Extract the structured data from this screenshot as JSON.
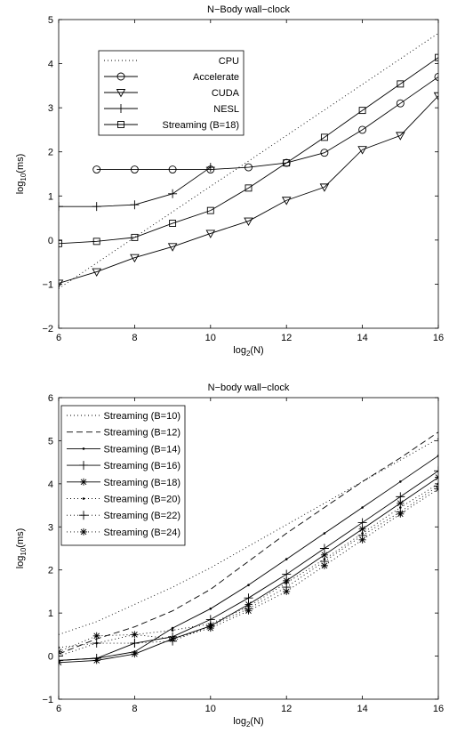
{
  "chart_data": [
    {
      "type": "line",
      "title": "N−Body wall−clock",
      "xlabel": "log",
      "xlabel_sub": "2",
      "xlabel_tail": "(N)",
      "ylabel": "log",
      "ylabel_sub": "10",
      "ylabel_tail": "(ms)",
      "xlim": [
        6,
        16
      ],
      "ylim": [
        -2,
        5
      ],
      "xticks": [
        6,
        8,
        10,
        12,
        14,
        16
      ],
      "yticks": [
        -2,
        -1,
        0,
        1,
        2,
        3,
        4,
        5
      ],
      "legend_position": "top-left",
      "series": [
        {
          "name": "CPU",
          "style": "dotted",
          "marker": "none",
          "x": [
            6,
            7,
            8,
            9,
            10,
            11,
            12,
            13,
            14,
            15,
            16
          ],
          "y": [
            -1.1,
            -0.52,
            0.06,
            0.64,
            1.22,
            1.79,
            2.37,
            2.95,
            3.53,
            4.11,
            4.69
          ]
        },
        {
          "name": "Accelerate",
          "style": "solid",
          "marker": "circle",
          "x": [
            7,
            8,
            9,
            10,
            11,
            12,
            13,
            14,
            15,
            16
          ],
          "y": [
            1.6,
            1.6,
            1.6,
            1.6,
            1.65,
            1.75,
            1.98,
            2.5,
            3.1,
            3.7
          ]
        },
        {
          "name": "CUDA",
          "style": "solid",
          "marker": "triangle-down",
          "x": [
            6,
            7,
            8,
            9,
            10,
            11,
            12,
            13,
            14,
            15,
            16
          ],
          "y": [
            -0.98,
            -0.72,
            -0.4,
            -0.15,
            0.15,
            0.43,
            0.9,
            1.2,
            2.05,
            2.37,
            3.27
          ]
        },
        {
          "name": "NESL",
          "style": "solid",
          "marker": "plus",
          "x": [
            6,
            7,
            8,
            9,
            10
          ],
          "y": [
            0.76,
            0.76,
            0.8,
            1.05,
            1.65
          ]
        },
        {
          "name": "Streaming (B=18)",
          "style": "solid",
          "marker": "square",
          "x": [
            6,
            7,
            8,
            9,
            10,
            11,
            12,
            13,
            14,
            15,
            16
          ],
          "y": [
            -0.08,
            -0.03,
            0.06,
            0.38,
            0.67,
            1.18,
            1.75,
            2.33,
            2.94,
            3.54,
            4.14
          ]
        }
      ]
    },
    {
      "type": "line",
      "title": "N−body wall−clock",
      "xlabel": "log",
      "xlabel_sub": "2",
      "xlabel_tail": "(N)",
      "ylabel": "log",
      "ylabel_sub": "10",
      "ylabel_tail": "(ms)",
      "xlim": [
        6,
        16
      ],
      "ylim": [
        -1,
        6
      ],
      "xticks": [
        6,
        8,
        10,
        12,
        14,
        16
      ],
      "yticks": [
        -1,
        0,
        1,
        2,
        3,
        4,
        5,
        6
      ],
      "legend_position": "top-left",
      "series": [
        {
          "name": "Streaming (B=10)",
          "style": "dotted",
          "marker": "none",
          "x": [
            6,
            7,
            8,
            9,
            10,
            11,
            12,
            13,
            14,
            15,
            16
          ],
          "y": [
            0.5,
            0.8,
            1.2,
            1.6,
            2.05,
            2.55,
            3.05,
            3.55,
            4.05,
            4.55,
            5.05
          ]
        },
        {
          "name": "Streaming (B=12)",
          "style": "dashed",
          "marker": "none",
          "x": [
            6,
            7,
            8,
            9,
            10,
            11,
            12,
            13,
            14,
            15,
            16
          ],
          "y": [
            0.05,
            0.4,
            0.68,
            1.05,
            1.55,
            2.2,
            2.85,
            3.45,
            4.05,
            4.6,
            5.2
          ]
        },
        {
          "name": "Streaming (B=14)",
          "style": "solid",
          "marker": "dot",
          "x": [
            6,
            7,
            8,
            9,
            10,
            11,
            12,
            13,
            14,
            15,
            16
          ],
          "y": [
            -0.1,
            -0.05,
            0.1,
            0.65,
            1.1,
            1.65,
            2.25,
            2.85,
            3.45,
            4.05,
            4.65
          ]
        },
        {
          "name": "Streaming (B=16)",
          "style": "solid",
          "marker": "plus",
          "x": [
            6,
            7,
            8,
            9,
            10,
            11,
            12,
            13,
            14,
            15,
            16
          ],
          "y": [
            -0.1,
            -0.05,
            0.3,
            0.45,
            0.85,
            1.35,
            1.9,
            2.5,
            3.1,
            3.7,
            4.3
          ]
        },
        {
          "name": "Streaming (B=18)",
          "style": "solid",
          "marker": "asterisk",
          "x": [
            6,
            7,
            8,
            9,
            10,
            11,
            12,
            13,
            14,
            15,
            16
          ],
          "y": [
            -0.15,
            -0.1,
            0.05,
            0.4,
            0.7,
            1.2,
            1.75,
            2.35,
            2.95,
            3.55,
            4.15
          ]
        },
        {
          "name": "Streaming (B=20)",
          "style": "dotted",
          "marker": "dot",
          "x": [
            6,
            7,
            8,
            9,
            10,
            11,
            12,
            13,
            14,
            15,
            16
          ],
          "y": [
            0.2,
            0.3,
            0.5,
            0.6,
            0.75,
            1.15,
            1.7,
            2.25,
            2.85,
            3.45,
            4.0
          ]
        },
        {
          "name": "Streaming (B=22)",
          "style": "dotted",
          "marker": "plus",
          "x": [
            6,
            7,
            8,
            9,
            10,
            11,
            12,
            13,
            14,
            15,
            16
          ],
          "y": [
            0.0,
            0.3,
            0.3,
            0.35,
            0.7,
            1.1,
            1.6,
            2.2,
            2.8,
            3.35,
            3.95
          ]
        },
        {
          "name": "Streaming (B=24)",
          "style": "dotted",
          "marker": "asterisk",
          "x": [
            6,
            7,
            8,
            9,
            10,
            11,
            12,
            13,
            14,
            15,
            16
          ],
          "y": [
            0.1,
            0.47,
            0.5,
            0.4,
            0.65,
            1.05,
            1.5,
            2.1,
            2.7,
            3.3,
            3.88
          ]
        }
      ]
    }
  ]
}
